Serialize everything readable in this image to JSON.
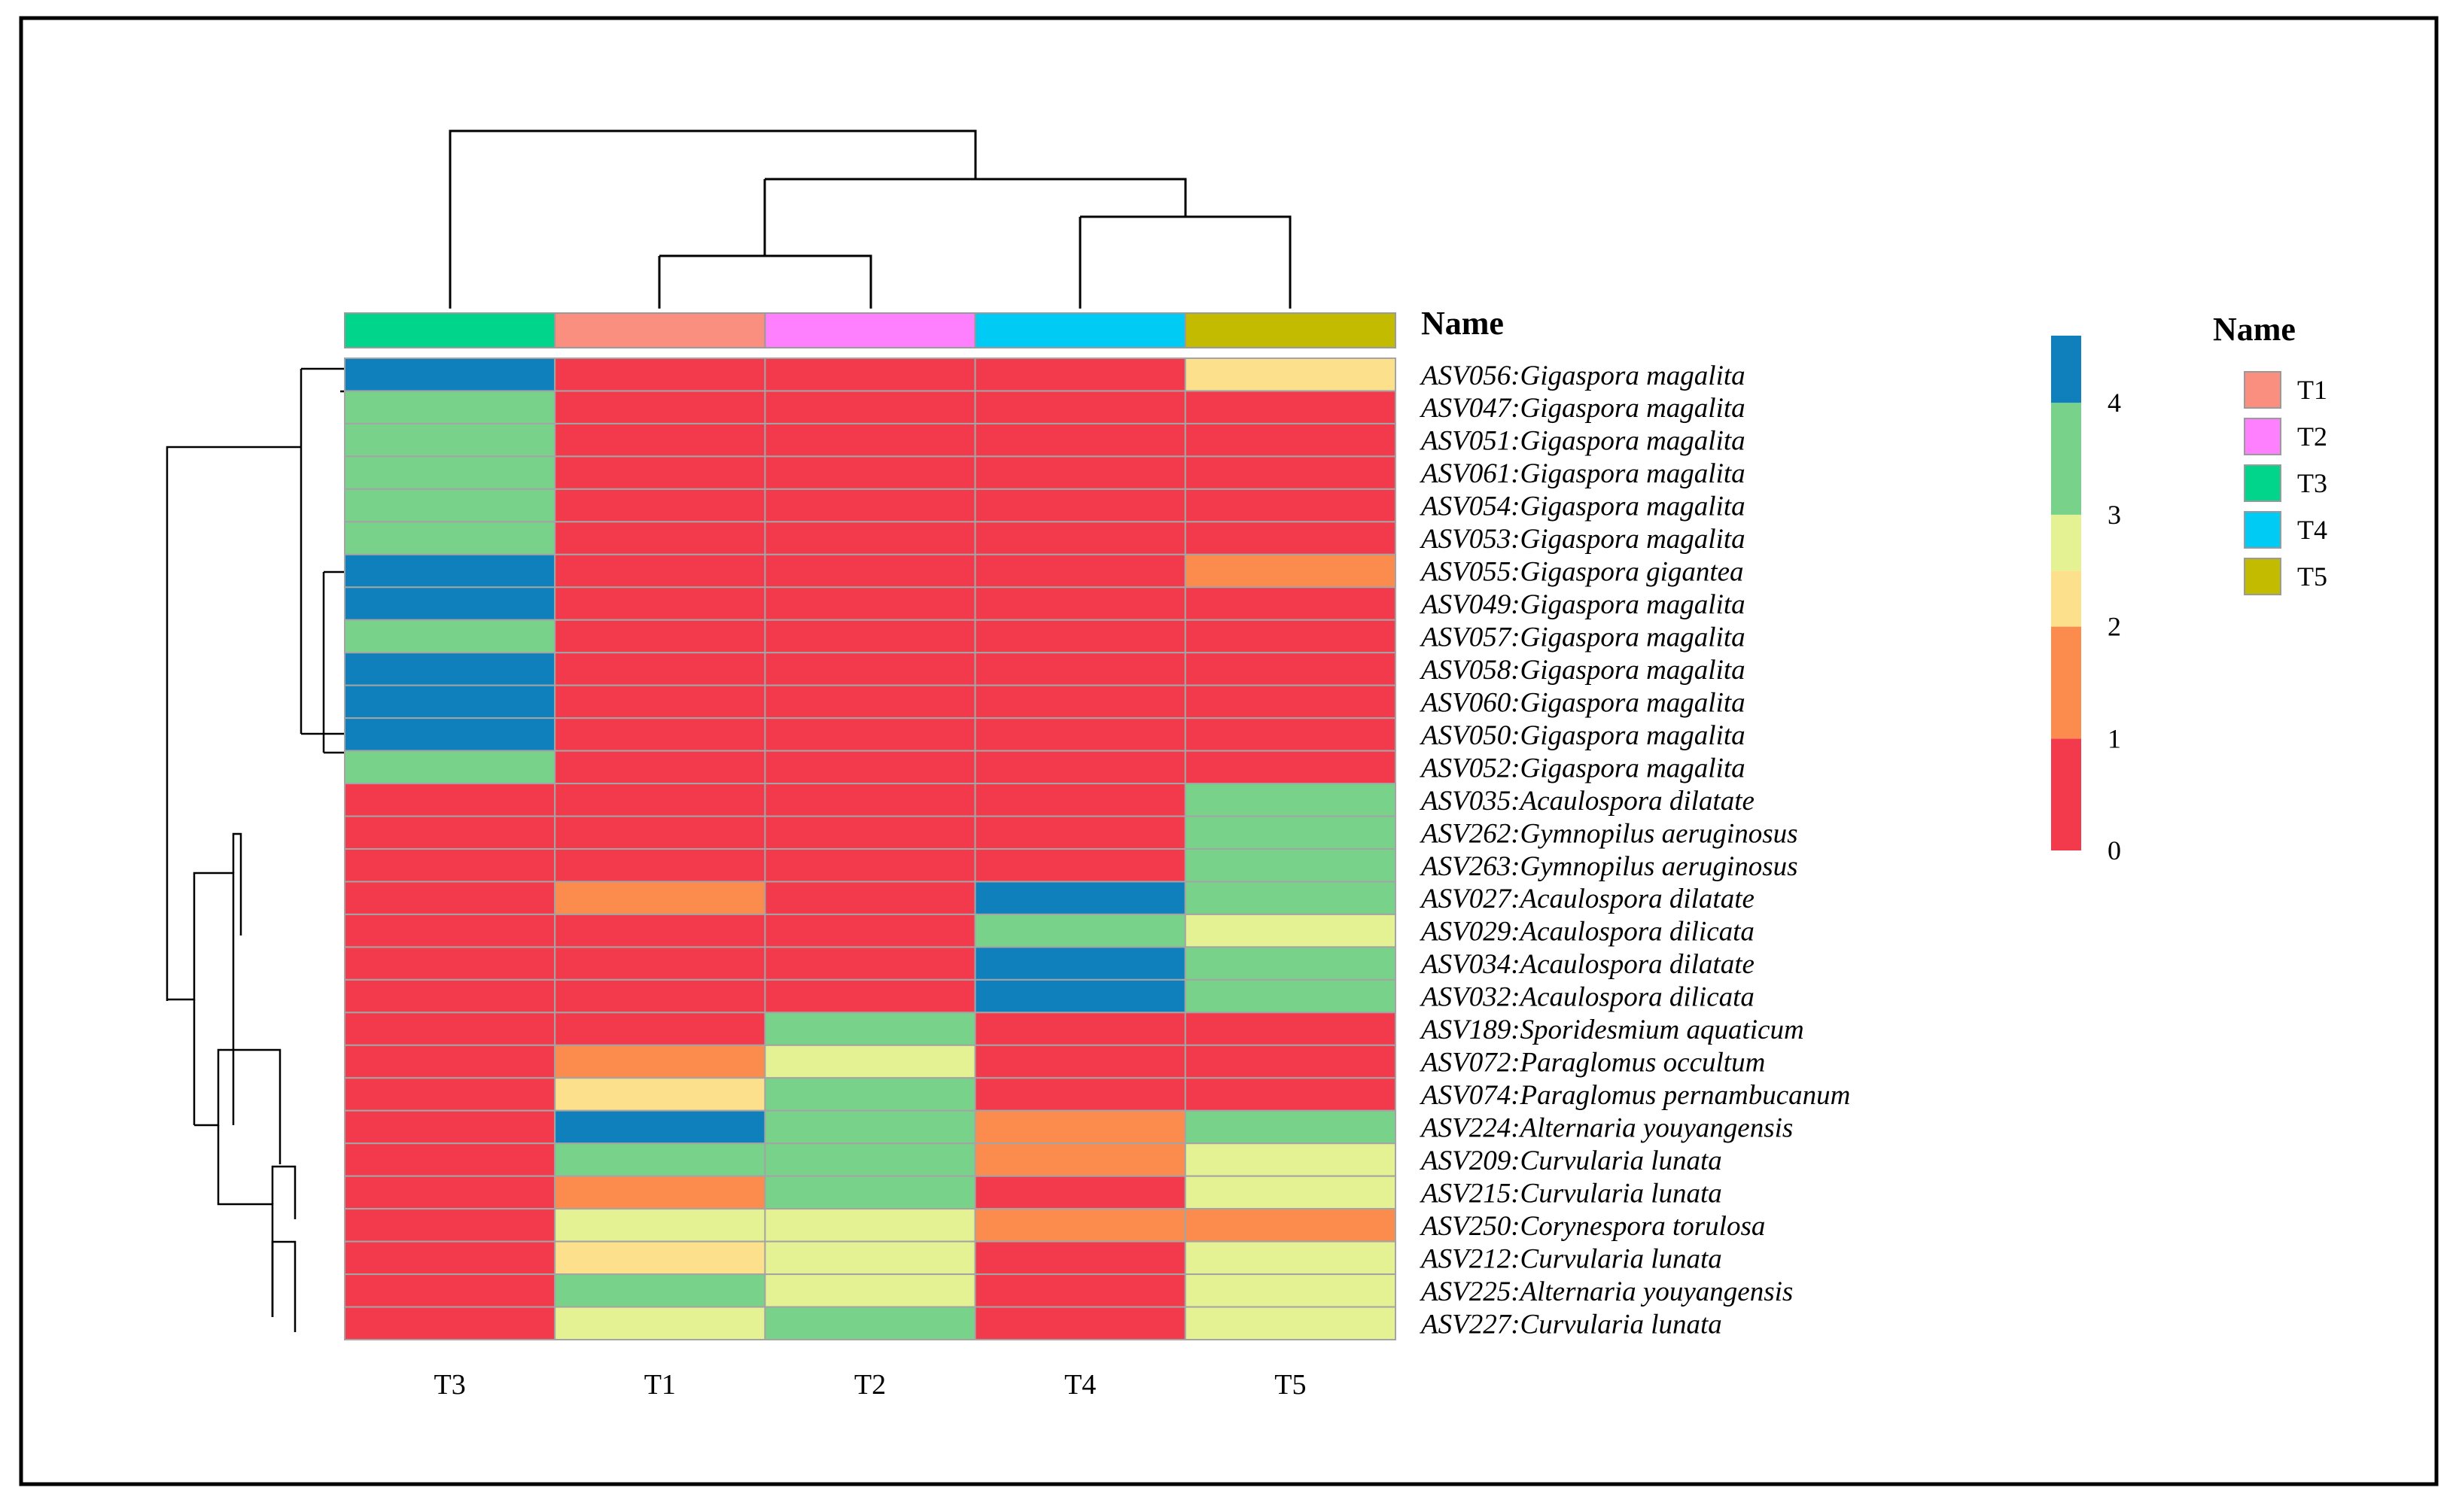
{
  "chart_data": {
    "type": "heatmap",
    "columns": [
      "T3",
      "T1",
      "T2",
      "T4",
      "T5"
    ],
    "rows": [
      {
        "asv": "ASV056",
        "taxon": "Gigaspora magalita",
        "values": [
          4,
          0,
          0,
          0,
          2
        ]
      },
      {
        "asv": "ASV047",
        "taxon": "Gigaspora magalita",
        "values": [
          3,
          0,
          0,
          0,
          0
        ]
      },
      {
        "asv": "ASV051",
        "taxon": "Gigaspora magalita",
        "values": [
          3,
          0,
          0,
          0,
          0
        ]
      },
      {
        "asv": "ASV061",
        "taxon": "Gigaspora magalita",
        "values": [
          3,
          0,
          0,
          0,
          0
        ]
      },
      {
        "asv": "ASV054",
        "taxon": "Gigaspora magalita",
        "values": [
          3,
          0,
          0,
          0,
          0
        ]
      },
      {
        "asv": "ASV053",
        "taxon": "Gigaspora magalita",
        "values": [
          3,
          0,
          0,
          0,
          0
        ]
      },
      {
        "asv": "ASV055",
        "taxon": "Gigaspora gigantea",
        "values": [
          4,
          0,
          0,
          0,
          1
        ]
      },
      {
        "asv": "ASV049",
        "taxon": "Gigaspora magalita",
        "values": [
          4,
          0,
          0,
          0,
          0
        ]
      },
      {
        "asv": "ASV057",
        "taxon": "Gigaspora magalita",
        "values": [
          3,
          0,
          0,
          0,
          0
        ]
      },
      {
        "asv": "ASV058",
        "taxon": "Gigaspora magalita",
        "values": [
          4,
          0,
          0,
          0,
          0
        ]
      },
      {
        "asv": "ASV060",
        "taxon": "Gigaspora magalita",
        "values": [
          4,
          0,
          0,
          0,
          0
        ]
      },
      {
        "asv": "ASV050",
        "taxon": "Gigaspora magalita",
        "values": [
          4,
          0,
          0,
          0,
          0
        ]
      },
      {
        "asv": "ASV052",
        "taxon": "Gigaspora magalita",
        "values": [
          3,
          0,
          0,
          0,
          0
        ]
      },
      {
        "asv": "ASV035",
        "taxon": "Acaulospora dilatate",
        "values": [
          0,
          0,
          0,
          0,
          3
        ]
      },
      {
        "asv": "ASV262",
        "taxon": "Gymnopilus aeruginosus",
        "values": [
          0,
          0,
          0,
          0,
          3
        ]
      },
      {
        "asv": "ASV263",
        "taxon": "Gymnopilus aeruginosus",
        "values": [
          0,
          0,
          0,
          0,
          3
        ]
      },
      {
        "asv": "ASV027",
        "taxon": "Acaulospora dilatate",
        "values": [
          0,
          1,
          0,
          4,
          3
        ]
      },
      {
        "asv": "ASV029",
        "taxon": "Acaulospora dilicata",
        "values": [
          0,
          0,
          0,
          3,
          2.5
        ]
      },
      {
        "asv": "ASV034",
        "taxon": "Acaulospora dilatate",
        "values": [
          0,
          0,
          0,
          4,
          3
        ]
      },
      {
        "asv": "ASV032",
        "taxon": "Acaulospora dilicata",
        "values": [
          0,
          0,
          0,
          4,
          3
        ]
      },
      {
        "asv": "ASV189",
        "taxon": "Sporidesmium aquaticum",
        "values": [
          0,
          0,
          3,
          0,
          0
        ]
      },
      {
        "asv": "ASV072",
        "taxon": "Paraglomus occultum",
        "values": [
          0,
          1,
          2.5,
          0,
          0
        ]
      },
      {
        "asv": "ASV074",
        "taxon": "Paraglomus pernambucanum",
        "values": [
          0,
          2,
          3,
          0,
          0
        ]
      },
      {
        "asv": "ASV224",
        "taxon": "Alternaria youyangensis",
        "values": [
          0,
          4,
          3,
          1,
          3
        ]
      },
      {
        "asv": "ASV209",
        "taxon": "Curvularia lunata",
        "values": [
          0,
          3,
          3,
          1,
          2.5
        ]
      },
      {
        "asv": "ASV215",
        "taxon": "Curvularia lunata",
        "values": [
          0,
          1,
          3,
          0,
          2.5
        ]
      },
      {
        "asv": "ASV250",
        "taxon": "Corynespora torulosa",
        "values": [
          0,
          2.5,
          2.5,
          1,
          1
        ]
      },
      {
        "asv": "ASV212",
        "taxon": "Curvularia lunata",
        "values": [
          0,
          2,
          2.5,
          0,
          2.5
        ]
      },
      {
        "asv": "ASV225",
        "taxon": "Alternaria youyangensis",
        "values": [
          0,
          3,
          2.5,
          0,
          2.5
        ]
      },
      {
        "asv": "ASV227",
        "taxon": "Curvularia lunata",
        "values": [
          0,
          2.5,
          3,
          0,
          2.5
        ]
      }
    ],
    "annotation_title": "Name",
    "color_scale": {
      "ticks": [
        4,
        3,
        2,
        1,
        0
      ],
      "range": [
        0,
        4.6
      ],
      "stops": [
        {
          "from": 0,
          "to": 1,
          "color": "#f33a4c"
        },
        {
          "from": 1,
          "to": 2,
          "color": "#fc8c4e"
        },
        {
          "from": 2,
          "to": 2.5,
          "color": "#fde08b"
        },
        {
          "from": 2.5,
          "to": 3,
          "color": "#e4f294"
        },
        {
          "from": 3,
          "to": 4,
          "color": "#79d289"
        },
        {
          "from": 4,
          "to": 4.6,
          "color": "#0f80bb"
        }
      ]
    },
    "legend": {
      "title": "Name",
      "entries": [
        {
          "label": "T1",
          "color": "#fa8f80"
        },
        {
          "label": "T2",
          "color": "#ff80ff"
        },
        {
          "label": "T3",
          "color": "#00d58b"
        },
        {
          "label": "T4",
          "color": "#00cbf4"
        },
        {
          "label": "T5",
          "color": "#c2bb00"
        }
      ]
    }
  }
}
